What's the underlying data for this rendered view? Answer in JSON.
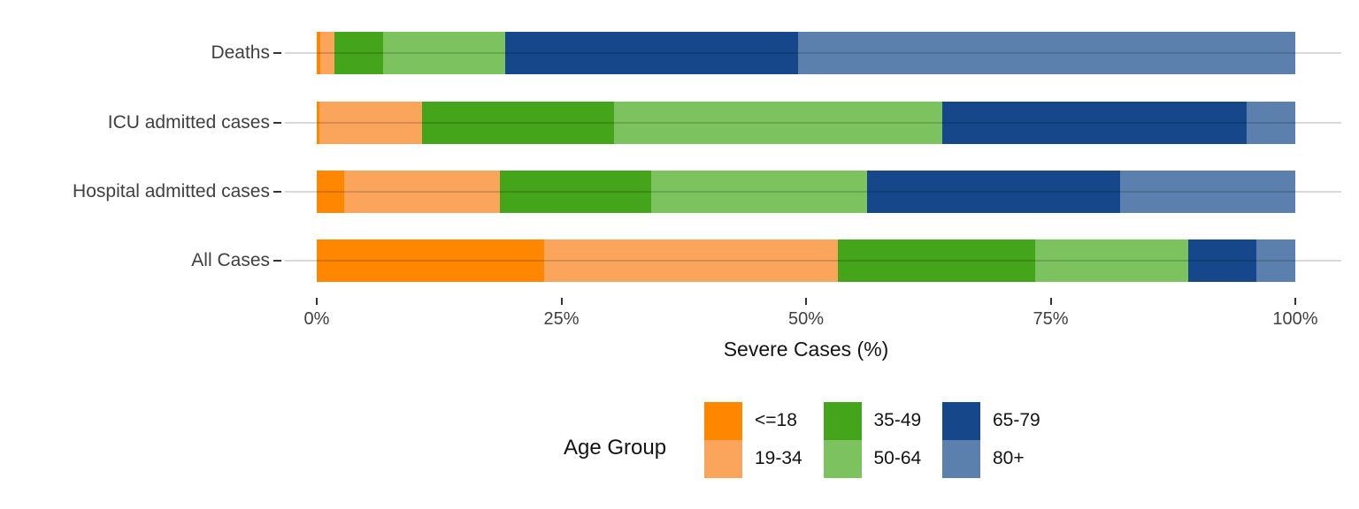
{
  "chart_data": {
    "type": "bar",
    "orientation": "horizontal",
    "stacked": true,
    "unit": "percent",
    "title": "",
    "xlabel": "Severe Cases (%)",
    "xlim": [
      0,
      100
    ],
    "grid": "horizontal-category-lines",
    "legend_position": "bottom",
    "categories": [
      "Deaths",
      "ICU admitted cases",
      "Hospital admitted cases",
      "All Cases"
    ],
    "x_ticks": [
      {
        "value": 0,
        "label": "0%"
      },
      {
        "value": 25,
        "label": "25%"
      },
      {
        "value": 50,
        "label": "50%"
      },
      {
        "value": 75,
        "label": "75%"
      },
      {
        "value": 100,
        "label": "100%"
      }
    ],
    "series": [
      {
        "name": "<=18",
        "color": "#FF8700",
        "values": [
          0.4,
          0.3,
          2.8,
          23.2
        ]
      },
      {
        "name": "19-34",
        "color": "#FBA45C",
        "values": [
          1.4,
          10.5,
          15.9,
          30.1
        ]
      },
      {
        "name": "35-49",
        "color": "#44A41A",
        "values": [
          5.0,
          19.6,
          15.5,
          20.1
        ]
      },
      {
        "name": "50-64",
        "color": "#7CC25E",
        "values": [
          12.5,
          33.5,
          22.0,
          15.7
        ]
      },
      {
        "name": "65-79",
        "color": "#16478A",
        "values": [
          29.9,
          31.1,
          25.9,
          6.9
        ]
      },
      {
        "name": "80+",
        "color": "#5B80AD",
        "values": [
          50.8,
          5.0,
          17.9,
          4.0
        ]
      }
    ],
    "legend": {
      "title": "Age Group",
      "entries": [
        {
          "label": "<=18",
          "color": "#FF8700"
        },
        {
          "label": "19-34",
          "color": "#FBA45C"
        },
        {
          "label": "35-49",
          "color": "#44A41A"
        },
        {
          "label": "50-64",
          "color": "#7CC25E"
        },
        {
          "label": "65-79",
          "color": "#16478A"
        },
        {
          "label": "80+",
          "color": "#5B80AD"
        }
      ]
    }
  }
}
